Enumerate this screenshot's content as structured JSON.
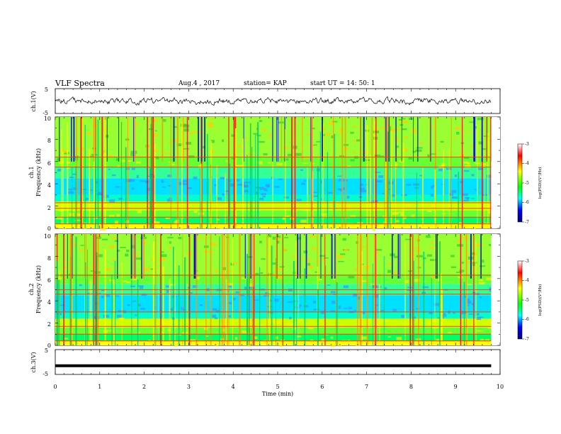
{
  "header": {
    "title": "VLF Spectra",
    "date": "Aug.4 , 2017",
    "station": "station= KAP",
    "start": "start UT = 14: 50: 1"
  },
  "panels": {
    "ch1_wave": {
      "ylabel": "ch.1(V)",
      "yticks": [
        "5",
        "-5"
      ]
    },
    "spec1": {
      "ylabel_line1": "ch.1",
      "ylabel_line2": "Frequency (kHz)",
      "yticks": [
        "10",
        "8",
        "6",
        "4",
        "2",
        "0"
      ]
    },
    "spec2": {
      "ylabel_line1": "ch.2",
      "ylabel_line2": "Frequency (kHz)",
      "yticks": [
        "10",
        "8",
        "6",
        "4",
        "2",
        "0"
      ]
    },
    "ch3_wave": {
      "ylabel": "ch.3(V)",
      "yticks": [
        "5",
        "-5"
      ]
    }
  },
  "xaxis": {
    "label": "Time (min)",
    "ticks": [
      "0",
      "1",
      "2",
      "3",
      "4",
      "5",
      "6",
      "7",
      "8",
      "9",
      "10"
    ]
  },
  "colorbar": {
    "label": "log(PSD)(V²/Hz)",
    "ticks": [
      "-3",
      "-4",
      "-5",
      "-6",
      "-7"
    ],
    "colors": [
      "#ffffff",
      "#ff0000",
      "#ffff00",
      "#00ff00",
      "#00ffff",
      "#0000ff",
      "#000080"
    ]
  },
  "chart_data": [
    {
      "type": "line",
      "name": "ch.1 waveform",
      "xlabel": "Time (min)",
      "ylabel": "ch.1(V)",
      "xlim": [
        0,
        10
      ],
      "ylim": [
        -5,
        5
      ],
      "note": "noisy signal fluctuating roughly between -1 and +1 V"
    },
    {
      "type": "heatmap",
      "xlabel": "Time (min)",
      "ylabel": "Frequency (kHz)",
      "channel": "ch.1",
      "xlim": [
        0,
        9.8
      ],
      "ylim": [
        0,
        10
      ],
      "colorbar_range": [
        -7,
        -3
      ],
      "horizontal_lines_khz": [
        0.4,
        1.0,
        1.8,
        2.3,
        5.5,
        6.4
      ]
    },
    {
      "type": "heatmap",
      "xlabel": "Time (min)",
      "ylabel": "Frequency (kHz)",
      "channel": "ch.2",
      "xlim": [
        0,
        9.8
      ],
      "ylim": [
        0,
        10
      ],
      "colorbar_range": [
        -7,
        -3
      ],
      "horizontal_lines_khz": [
        0.4,
        1.0,
        1.7,
        3.0,
        4.6,
        5.0,
        6.3
      ]
    },
    {
      "type": "line",
      "name": "ch.3 waveform",
      "xlabel": "Time (min)",
      "ylabel": "ch.3(V)",
      "xlim": [
        0,
        10
      ],
      "ylim": [
        -5,
        5
      ],
      "x": [
        0,
        9.8
      ],
      "y": [
        -1.5,
        -1.5
      ]
    }
  ]
}
